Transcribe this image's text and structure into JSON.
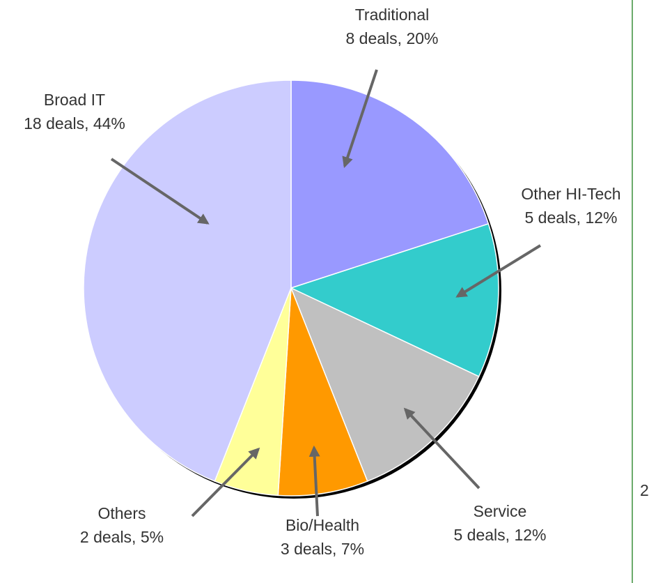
{
  "chart_data": {
    "type": "pie",
    "categories": [
      "Traditional",
      "Other HI-Tech",
      "Service",
      "Bio/Health",
      "Others",
      "Broad IT"
    ],
    "values": [
      20,
      12,
      12,
      7,
      5,
      44
    ],
    "value_labels": [
      "8 deals, 20%",
      "5 deals, 12%",
      "5 deals, 12%",
      "3 deals, 7%",
      "2 deals, 5%",
      "18 deals, 44%"
    ],
    "colors": [
      "#9999ff",
      "#33cccc",
      "#c0c0c0",
      "#ff9900",
      "#ffff99",
      "#ccccff"
    ],
    "annotation": "2"
  }
}
